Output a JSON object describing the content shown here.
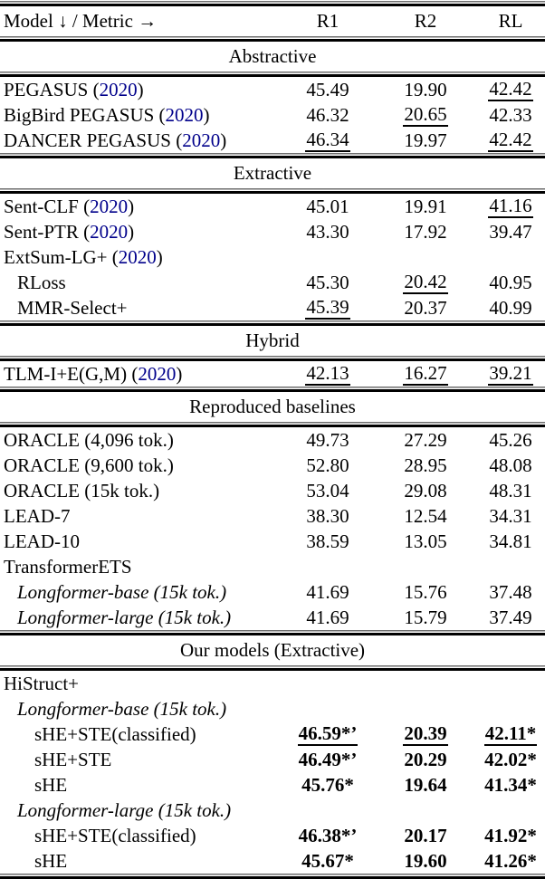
{
  "page": {
    "background": "#ffffff",
    "text_color": "#000000",
    "citation_color": "#00008B"
  },
  "table": {
    "header": {
      "model_column": "Model ↓ / Metric →",
      "metrics": [
        "R1",
        "R2",
        "RL"
      ]
    },
    "citation_wrap": [
      "(",
      ")"
    ],
    "sections": [
      {
        "title": "Abstractive",
        "rows": [
          {
            "label": "PEGASUS",
            "year": "2020",
            "indent": 0,
            "italic": false,
            "cells": [
              {
                "t": "45.49"
              },
              {
                "t": "19.90"
              },
              {
                "t": "42.42",
                "u": true
              }
            ]
          },
          {
            "label": "BigBird PEGASUS",
            "year": "2020",
            "indent": 0,
            "italic": false,
            "cells": [
              {
                "t": "46.32"
              },
              {
                "t": "20.65",
                "u": true
              },
              {
                "t": "42.33"
              }
            ]
          },
          {
            "label": "DANCER PEGASUS",
            "year": "2020",
            "indent": 0,
            "italic": false,
            "cells": [
              {
                "t": "46.34",
                "u": true
              },
              {
                "t": "19.97"
              },
              {
                "t": "42.42",
                "u": true
              }
            ]
          }
        ]
      },
      {
        "title": "Extractive",
        "rows": [
          {
            "label": "Sent-CLF",
            "year": "2020",
            "indent": 0,
            "italic": false,
            "cells": [
              {
                "t": "45.01"
              },
              {
                "t": "19.91"
              },
              {
                "t": "41.16",
                "u": true
              }
            ]
          },
          {
            "label": "Sent-PTR",
            "year": "2020",
            "indent": 0,
            "italic": false,
            "cells": [
              {
                "t": "43.30"
              },
              {
                "t": "17.92"
              },
              {
                "t": "39.47"
              }
            ]
          },
          {
            "label": "ExtSum-LG+",
            "year": "2020",
            "indent": 0,
            "italic": false,
            "cells": [
              {
                "t": ""
              },
              {
                "t": ""
              },
              {
                "t": ""
              }
            ]
          },
          {
            "label": "RLoss",
            "indent": 1,
            "italic": false,
            "cells": [
              {
                "t": "45.30"
              },
              {
                "t": "20.42",
                "u": true
              },
              {
                "t": "40.95"
              }
            ]
          },
          {
            "label": "MMR-Select+",
            "indent": 1,
            "italic": false,
            "cells": [
              {
                "t": "45.39",
                "u": true
              },
              {
                "t": "20.37"
              },
              {
                "t": "40.99"
              }
            ]
          }
        ]
      },
      {
        "title": "Hybrid",
        "rows": [
          {
            "label": "TLM-I+E(G,M)",
            "year": "2020",
            "indent": 0,
            "italic": false,
            "cells": [
              {
                "t": "42.13",
                "u": true
              },
              {
                "t": "16.27",
                "u": true
              },
              {
                "t": "39.21",
                "u": true
              }
            ]
          }
        ]
      },
      {
        "title": "Reproduced baselines",
        "rows": [
          {
            "label": "ORACLE (4,096 tok.)",
            "indent": 0,
            "italic": false,
            "cells": [
              {
                "t": "49.73"
              },
              {
                "t": "27.29"
              },
              {
                "t": "45.26"
              }
            ]
          },
          {
            "label": "ORACLE (9,600 tok.)",
            "indent": 0,
            "italic": false,
            "cells": [
              {
                "t": "52.80"
              },
              {
                "t": "28.95"
              },
              {
                "t": "48.08"
              }
            ]
          },
          {
            "label": "ORACLE (15k tok.)",
            "indent": 0,
            "italic": false,
            "cells": [
              {
                "t": "53.04"
              },
              {
                "t": "29.08"
              },
              {
                "t": "48.31"
              }
            ]
          },
          {
            "label": "LEAD-7",
            "indent": 0,
            "italic": false,
            "cells": [
              {
                "t": "38.30"
              },
              {
                "t": "12.54"
              },
              {
                "t": "34.31"
              }
            ]
          },
          {
            "label": "LEAD-10",
            "indent": 0,
            "italic": false,
            "cells": [
              {
                "t": "38.59"
              },
              {
                "t": "13.05"
              },
              {
                "t": "34.81"
              }
            ]
          },
          {
            "label": "TransformerETS",
            "indent": 0,
            "italic": false,
            "cells": [
              {
                "t": ""
              },
              {
                "t": ""
              },
              {
                "t": ""
              }
            ]
          },
          {
            "label": "Longformer-base (15k tok.)",
            "indent": 1,
            "italic": true,
            "cells": [
              {
                "t": "41.69"
              },
              {
                "t": "15.76"
              },
              {
                "t": "37.48"
              }
            ]
          },
          {
            "label": "Longformer-large (15k tok.)",
            "indent": 1,
            "italic": true,
            "cells": [
              {
                "t": "41.69"
              },
              {
                "t": "15.79"
              },
              {
                "t": "37.49"
              }
            ]
          }
        ]
      },
      {
        "title": "Our models (Extractive)",
        "rows": [
          {
            "label": "HiStruct+",
            "indent": 0,
            "italic": false,
            "cells": [
              {
                "t": ""
              },
              {
                "t": ""
              },
              {
                "t": ""
              }
            ]
          },
          {
            "label": "Longformer-base (15k tok.)",
            "indent": 1,
            "italic": true,
            "cells": [
              {
                "t": ""
              },
              {
                "t": ""
              },
              {
                "t": ""
              }
            ]
          },
          {
            "label": "sHE+STE(classified)",
            "indent": 2,
            "italic": false,
            "cells": [
              {
                "t": "46.59*’",
                "b": true,
                "u": true
              },
              {
                "t": "20.39",
                "b": true,
                "u": true
              },
              {
                "t": "42.11*",
                "b": true,
                "u": true
              }
            ]
          },
          {
            "label": "sHE+STE",
            "indent": 2,
            "italic": false,
            "cells": [
              {
                "t": "46.49*’",
                "b": true
              },
              {
                "t": "20.29",
                "b": true
              },
              {
                "t": "42.02*",
                "b": true
              }
            ]
          },
          {
            "label": "sHE",
            "indent": 2,
            "italic": false,
            "cells": [
              {
                "t": "45.76*",
                "b": true
              },
              {
                "t": "19.64",
                "b": true
              },
              {
                "t": "41.34*",
                "b": true
              }
            ]
          },
          {
            "label": "Longformer-large (15k tok.)",
            "indent": 1,
            "italic": true,
            "cells": [
              {
                "t": ""
              },
              {
                "t": ""
              },
              {
                "t": ""
              }
            ]
          },
          {
            "label": "sHE+STE(classified)",
            "indent": 2,
            "italic": false,
            "cells": [
              {
                "t": "46.38*’",
                "b": true
              },
              {
                "t": "20.17",
                "b": true
              },
              {
                "t": "41.92*",
                "b": true
              }
            ]
          },
          {
            "label": "sHE",
            "indent": 2,
            "italic": false,
            "cells": [
              {
                "t": "45.67*",
                "b": true
              },
              {
                "t": "19.60",
                "b": true
              },
              {
                "t": "41.26*",
                "b": true
              }
            ]
          }
        ]
      }
    ]
  }
}
